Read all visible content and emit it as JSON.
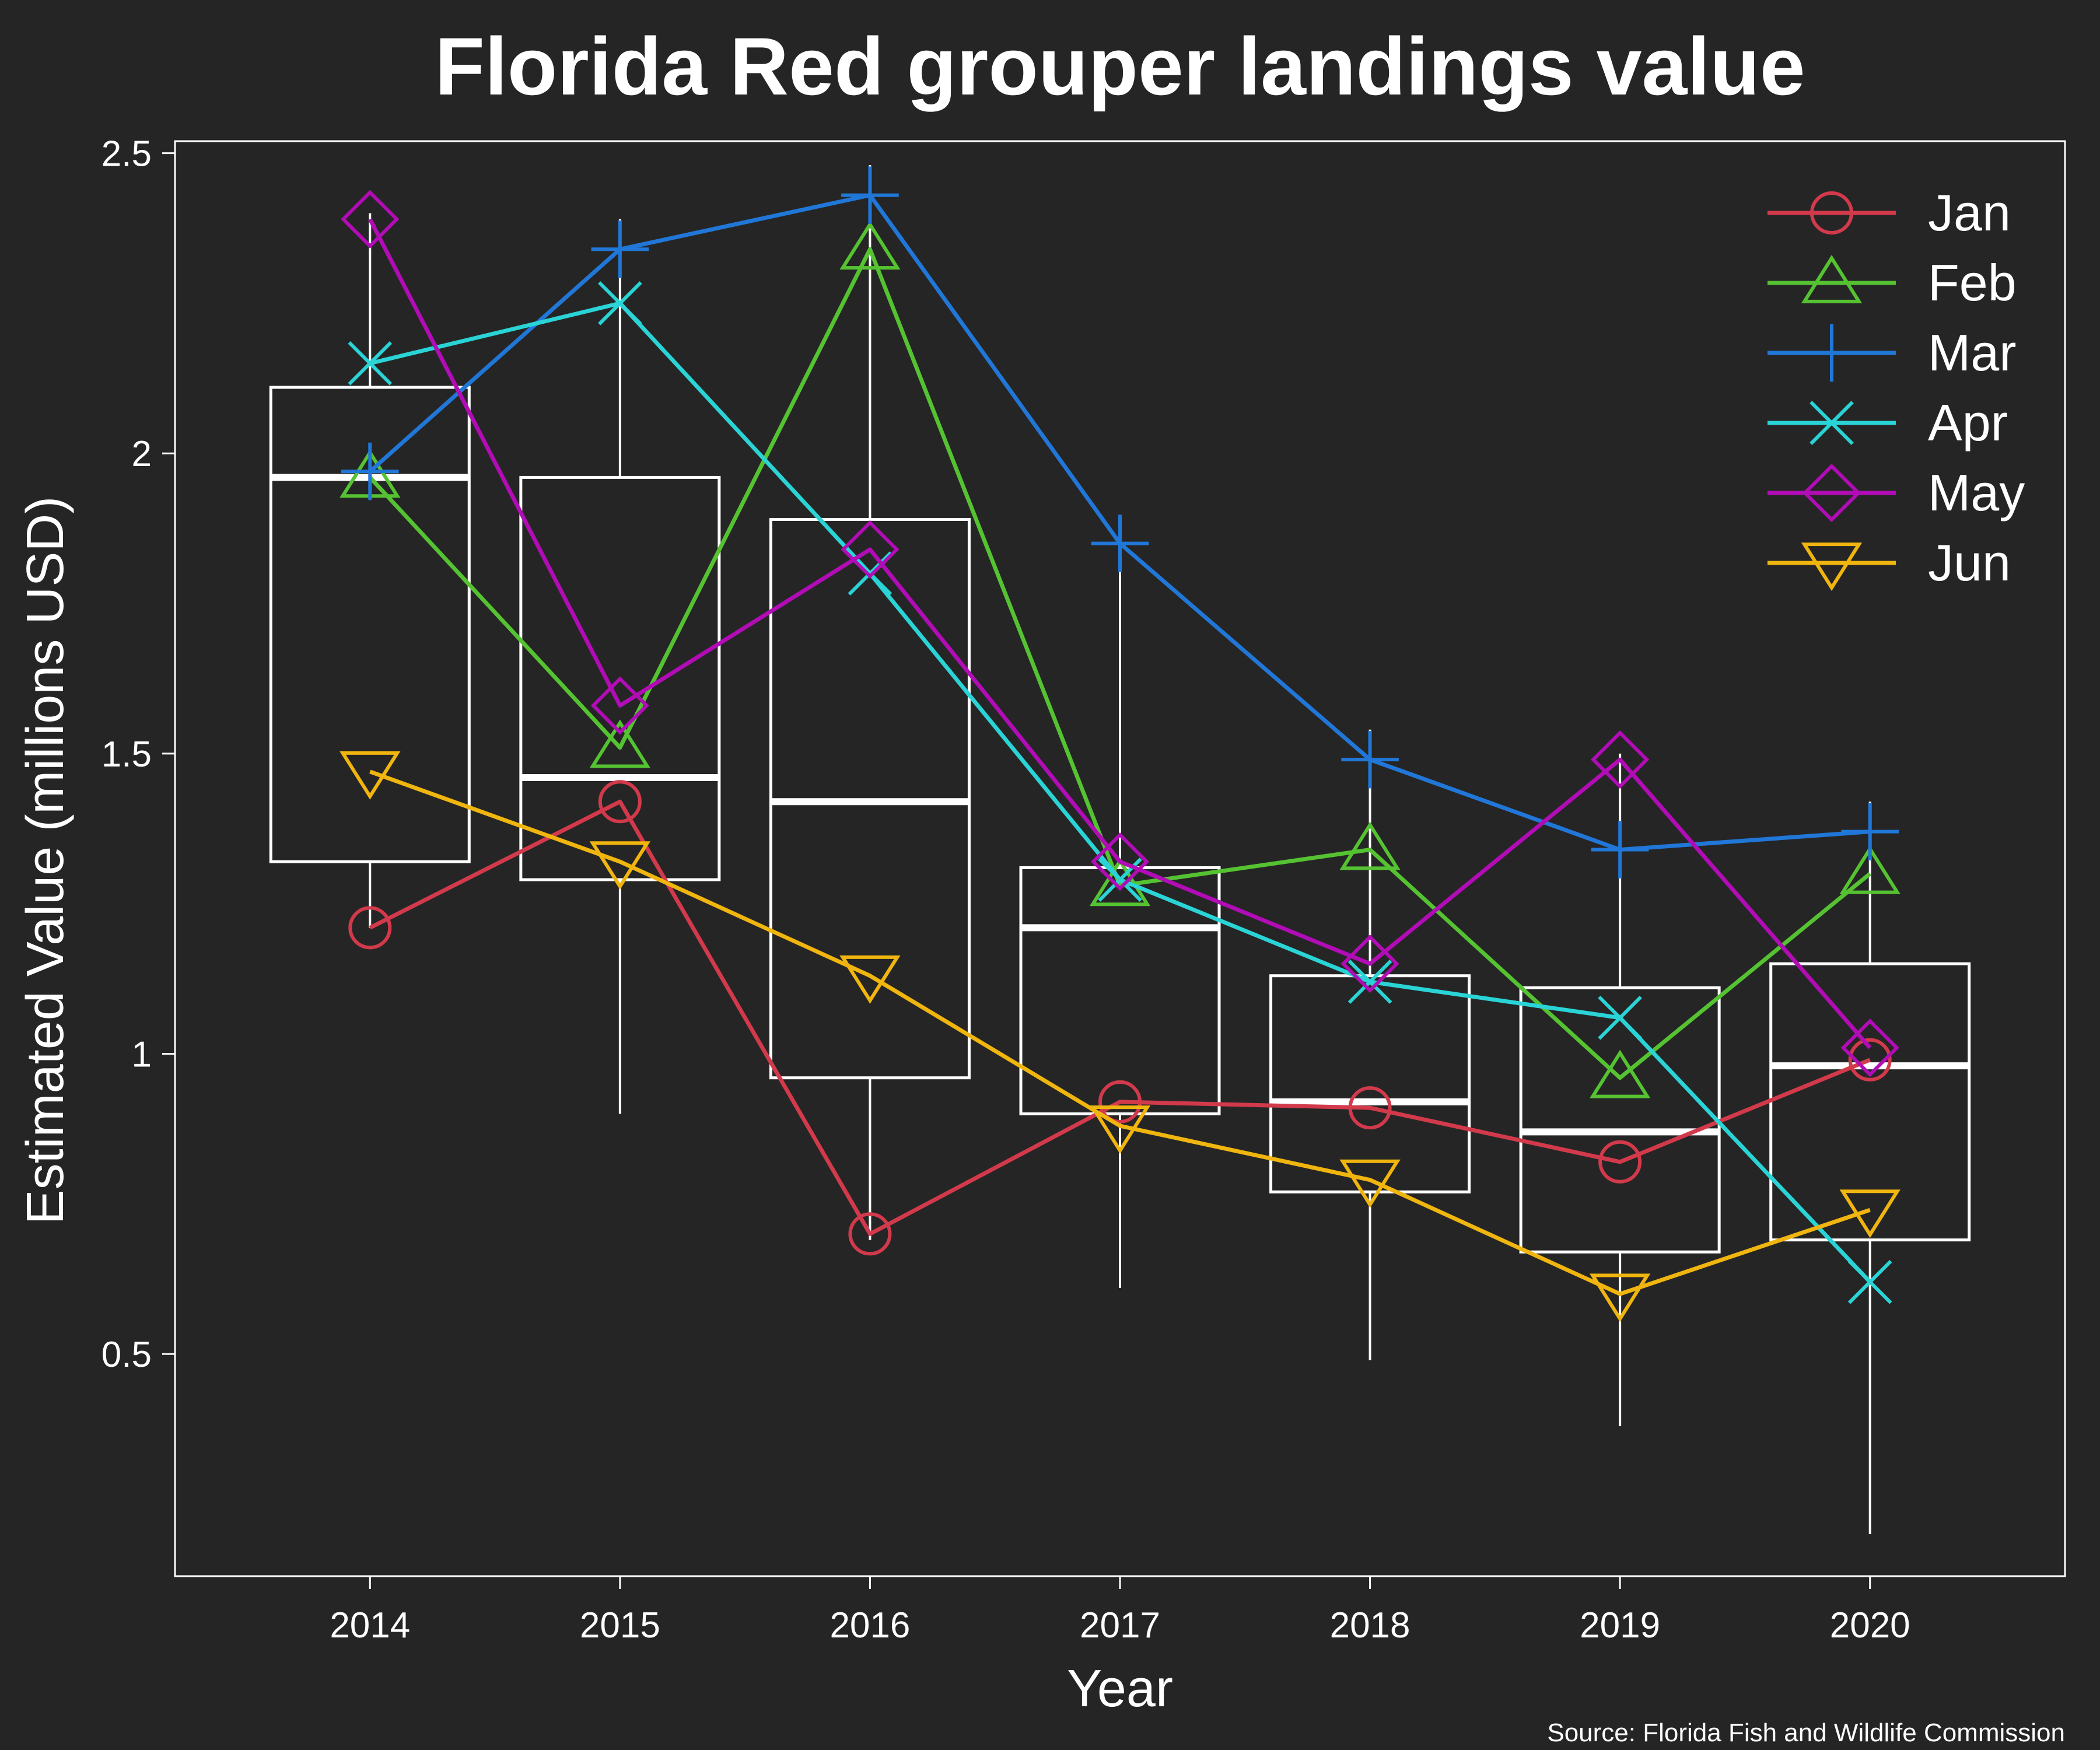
{
  "chart_data": {
    "type": "line",
    "title": "Florida Red grouper landings value",
    "xlabel": "Year",
    "ylabel": "Estimated Value (millions USD)",
    "caption": "Source: Florida Fish and Wildlife Commission",
    "x": [
      2014,
      2015,
      2016,
      2017,
      2018,
      2019,
      2020
    ],
    "x_tick_labels": [
      "2014",
      "2015",
      "2016",
      "2017",
      "2018",
      "2019",
      "2020"
    ],
    "xlim": [
      2013.22,
      2020.78
    ],
    "ylim": [
      0.13,
      2.52
    ],
    "y_ticks": [
      0.5,
      1,
      1.5,
      2,
      2.5
    ],
    "y_tick_labels": [
      "0.5",
      "1",
      "1.5",
      "2",
      "2.5"
    ],
    "grid": false,
    "legend_position": "top-right",
    "background_color": "#252525",
    "box_color": "#ffffff",
    "boxplot": [
      {
        "x": 2014,
        "whisker_low": 1.21,
        "q1": 1.32,
        "median": 1.96,
        "q3": 2.11,
        "whisker_high": 2.4
      },
      {
        "x": 2015,
        "whisker_low": 0.9,
        "q1": 1.29,
        "median": 1.46,
        "q3": 1.96,
        "whisker_high": 2.39
      },
      {
        "x": 2016,
        "whisker_low": 0.69,
        "q1": 0.96,
        "median": 1.42,
        "q3": 1.89,
        "whisker_high": 2.48
      },
      {
        "x": 2017,
        "whisker_low": 0.61,
        "q1": 0.9,
        "median": 1.21,
        "q3": 1.31,
        "whisker_high": 1.88
      },
      {
        "x": 2018,
        "whisker_low": 0.49,
        "q1": 0.77,
        "median": 0.92,
        "q3": 1.13,
        "whisker_high": 1.54
      },
      {
        "x": 2019,
        "whisker_low": 0.38,
        "q1": 0.67,
        "median": 0.87,
        "q3": 1.11,
        "whisker_high": 1.5
      },
      {
        "x": 2020,
        "whisker_low": 0.2,
        "q1": 0.69,
        "median": 0.98,
        "q3": 1.15,
        "whisker_high": 1.42
      }
    ],
    "series": [
      {
        "name": "Jan",
        "color": "#d23a4c",
        "marker": "circle",
        "values": [
          1.21,
          1.42,
          0.7,
          0.92,
          0.91,
          0.82,
          0.99
        ]
      },
      {
        "name": "Feb",
        "color": "#55c232",
        "marker": "triangle-up",
        "values": [
          1.96,
          1.51,
          2.34,
          1.28,
          1.34,
          0.96,
          1.3
        ]
      },
      {
        "name": "Mar",
        "color": "#2177d8",
        "marker": "plus",
        "values": [
          1.97,
          2.34,
          2.43,
          1.85,
          1.49,
          1.34,
          1.37
        ]
      },
      {
        "name": "Apr",
        "color": "#2ad4d6",
        "marker": "cross",
        "values": [
          2.15,
          2.25,
          1.8,
          1.29,
          1.12,
          1.06,
          0.62
        ]
      },
      {
        "name": "May",
        "color": "#b10cb6",
        "marker": "diamond",
        "values": [
          2.39,
          1.58,
          1.84,
          1.32,
          1.15,
          1.49,
          1.01
        ]
      },
      {
        "name": "Jun",
        "color": "#f0b50e",
        "marker": "triangle-down",
        "values": [
          1.47,
          1.32,
          1.13,
          0.88,
          0.79,
          0.6,
          0.74
        ]
      }
    ]
  }
}
